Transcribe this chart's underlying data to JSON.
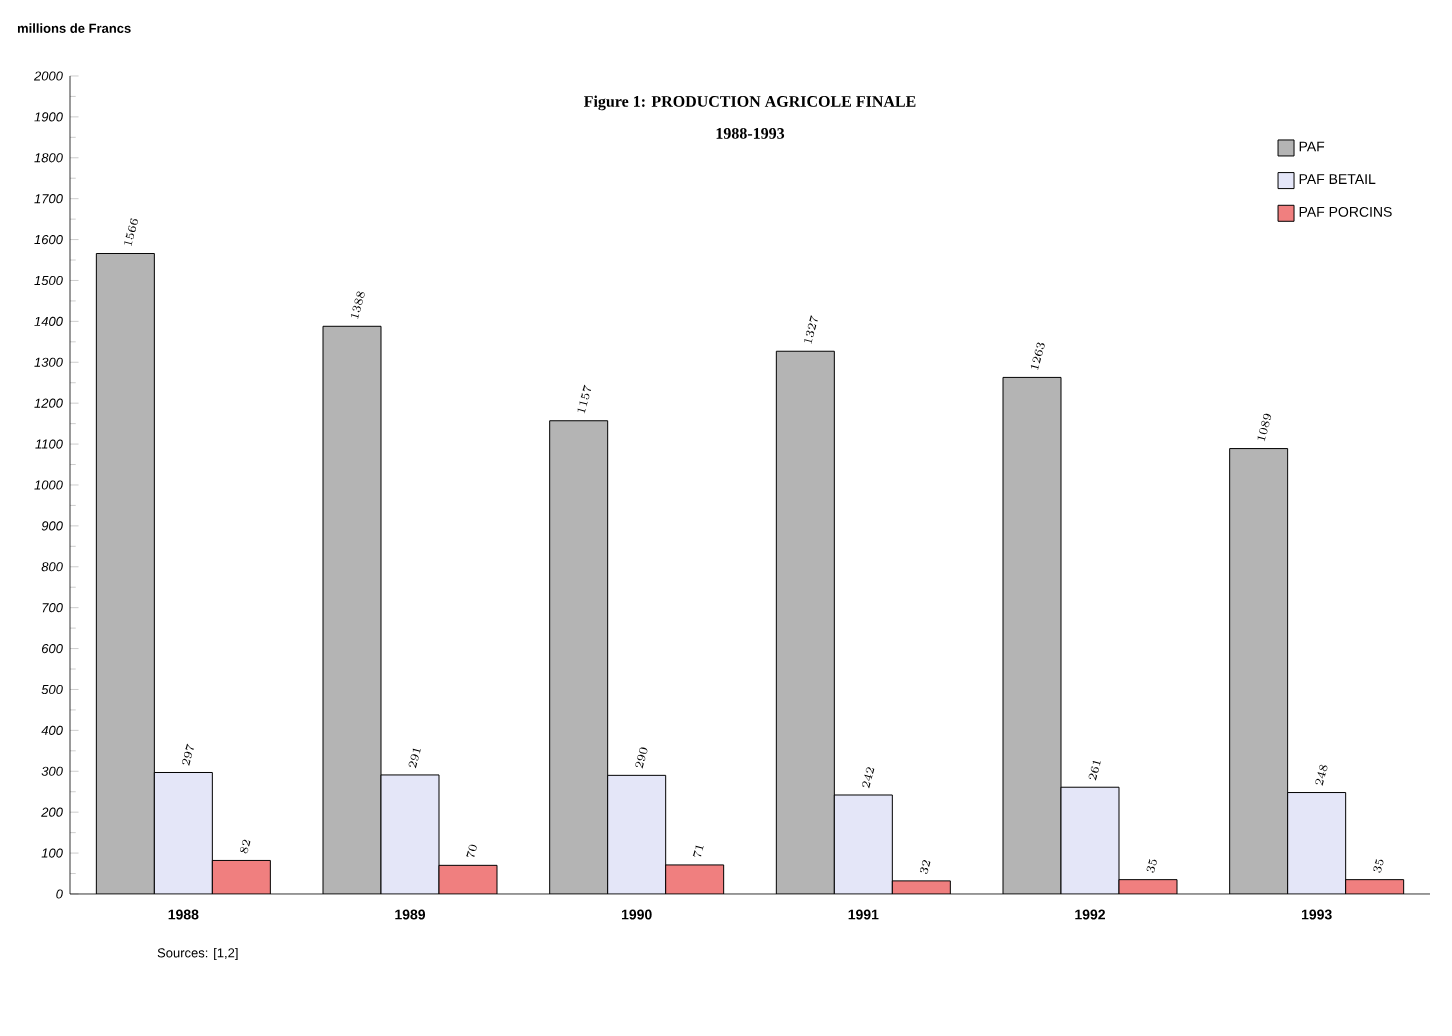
{
  "chart_data": {
    "type": "bar",
    "title": "Figure 1: PRODUCTION AGRICOLE FINALE",
    "subtitle": "1988-1993",
    "ylabel": "millions de Francs",
    "categories": [
      "1988",
      "1989",
      "1990",
      "1991",
      "1992",
      "1993"
    ],
    "series": [
      {
        "name": "PAF",
        "color": "#b4b4b4",
        "values": [
          1566,
          1388,
          1157,
          1327,
          1263,
          1089
        ]
      },
      {
        "name": "PAF BETAIL",
        "color": "#e4e6f8",
        "values": [
          297,
          291,
          290,
          242,
          261,
          248
        ]
      },
      {
        "name": "PAF PORCINS",
        "color": "#f07f7f",
        "values": [
          82,
          70,
          71,
          32,
          35,
          35
        ]
      }
    ],
    "ylim": [
      0,
      2000
    ],
    "yticks": [
      0,
      100,
      200,
      300,
      400,
      500,
      600,
      700,
      800,
      900,
      1000,
      1100,
      1200,
      1300,
      1400,
      1500,
      1600,
      1700,
      1800,
      1900,
      2000
    ],
    "data_labels": true,
    "legend": "top right",
    "grid": false,
    "annotations": [
      "Sources: [1,2]"
    ]
  }
}
